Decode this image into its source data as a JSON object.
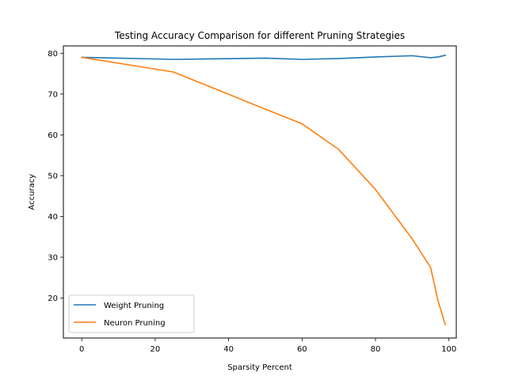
{
  "chart_data": {
    "type": "line",
    "title": "Testing Accuracy Comparison for different Pruning Strategies",
    "xlabel": "Sparsity Percent",
    "ylabel": "Accuracy",
    "xlim": [
      -5,
      102
    ],
    "ylim": [
      10.2,
      81.8
    ],
    "xticks": [
      0,
      20,
      40,
      60,
      80,
      100
    ],
    "yticks": [
      20,
      30,
      40,
      50,
      60,
      70,
      80
    ],
    "grid": false,
    "legend_position": "lower-left",
    "series": [
      {
        "name": "Weight Pruning",
        "color": "#1f77b4",
        "x": [
          0,
          25,
          50,
          60,
          70,
          80,
          90,
          95,
          97,
          99
        ],
        "y": [
          79.0,
          78.5,
          78.8,
          78.5,
          78.7,
          79.1,
          79.4,
          78.9,
          79.1,
          79.5
        ]
      },
      {
        "name": "Neuron Pruning",
        "color": "#ff7f0e",
        "x": [
          0,
          25,
          50,
          60,
          70,
          80,
          90,
          95,
          97,
          99
        ],
        "y": [
          79.0,
          75.4,
          66.3,
          62.7,
          56.4,
          46.6,
          34.5,
          27.5,
          19.4,
          13.5
        ]
      }
    ]
  }
}
